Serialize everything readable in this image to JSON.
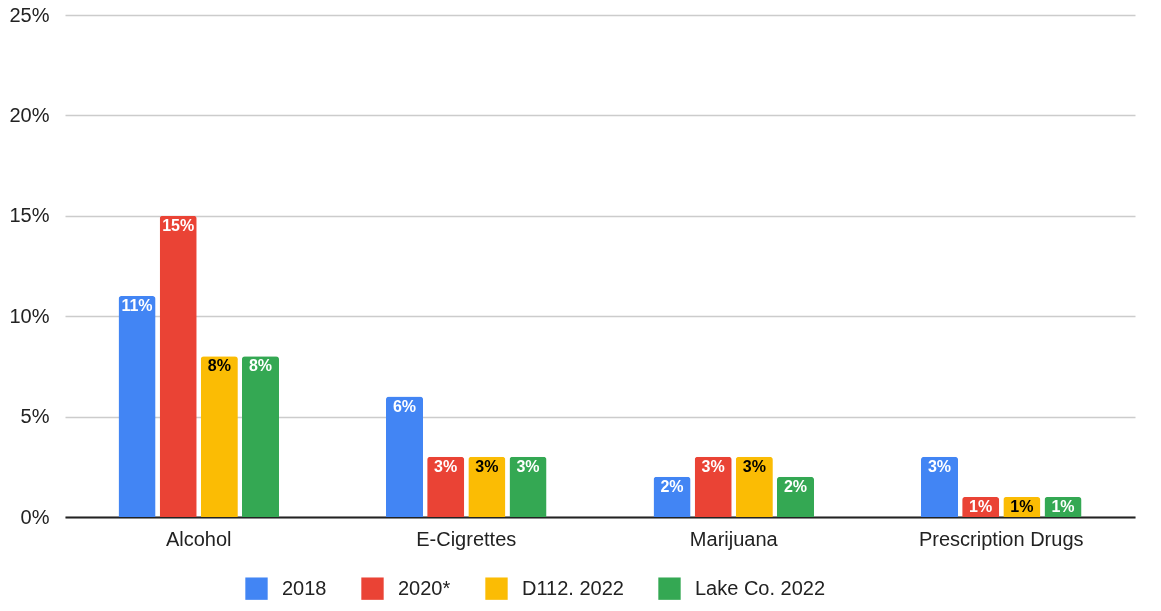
{
  "chart_data": {
    "type": "bar",
    "categories": [
      "Alcohol",
      "E-Cigrettes",
      "Marijuana",
      "Prescription Drugs"
    ],
    "series": [
      {
        "name": "2018",
        "color": "#4285f4",
        "values": [
          11,
          6,
          2,
          3
        ],
        "value_labels": [
          "11%",
          "6%",
          "2%",
          "3%"
        ]
      },
      {
        "name": "2020*",
        "color": "#ea4335",
        "values": [
          15,
          3,
          3,
          1
        ],
        "value_labels": [
          "15%",
          "3%",
          "3%",
          "1%"
        ]
      },
      {
        "name": "D112. 2022",
        "color": "#fbbc04",
        "values": [
          8,
          3,
          3,
          1
        ],
        "value_labels": [
          "8%",
          "3%",
          "3%",
          "1%"
        ]
      },
      {
        "name": "Lake Co. 2022",
        "color": "#34a853",
        "values": [
          8,
          3,
          2,
          1
        ],
        "value_labels": [
          "8%",
          "3%",
          "2%",
          "1%"
        ]
      }
    ],
    "ylim": [
      0,
      25
    ],
    "yticks": [
      {
        "value": 0,
        "label": "0%"
      },
      {
        "value": 5,
        "label": "5%"
      },
      {
        "value": 10,
        "label": "10%"
      },
      {
        "value": 15,
        "label": "15%"
      },
      {
        "value": 20,
        "label": "20%"
      },
      {
        "value": 25,
        "label": "25%"
      }
    ],
    "grid": "y",
    "legend": "bottom"
  }
}
